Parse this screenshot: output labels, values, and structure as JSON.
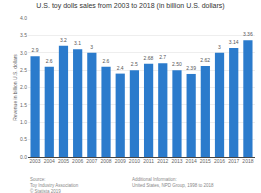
{
  "chart_data": {
    "type": "bar",
    "title": "U.S. toy dolls sales from 2003 to 2018 (in billion U.S. dollars)",
    "categories": [
      "2003",
      "2004",
      "2005",
      "2006",
      "2007",
      "2008",
      "2009",
      "2010",
      "2011",
      "2012",
      "2013",
      "2014",
      "2015",
      "2016",
      "2017",
      "2018"
    ],
    "values": [
      2.9,
      2.6,
      3.2,
      3.1,
      3.0,
      2.6,
      2.4,
      2.5,
      2.68,
      2.7,
      2.5,
      2.39,
      2.62,
      3.0,
      3.14,
      3.36
    ],
    "value_labels": [
      "2.9",
      "2.6",
      "3.2",
      "3.1",
      "3",
      "2.6",
      "2.4",
      "2.5",
      "2.68",
      "2.7",
      "2.50",
      "2.39",
      "2.62",
      "3",
      "3.14",
      "3.36"
    ],
    "data_labels": true,
    "color": "#2b7bcc",
    "ylabel": "Revenue in billion U.S. dollars",
    "ylim": [
      0,
      4
    ],
    "yticks": [
      {
        "value": 0,
        "label": "0.0"
      },
      {
        "value": 0.5,
        "label": "0.5"
      },
      {
        "value": 1.0,
        "label": "1.0"
      },
      {
        "value": 1.5,
        "label": "1.5"
      },
      {
        "value": 2.0,
        "label": "2.0"
      },
      {
        "value": 2.5,
        "label": "2.5"
      },
      {
        "value": 3.0,
        "label": "3.0"
      },
      {
        "value": 3.5,
        "label": "3.5"
      },
      {
        "value": 4.0,
        "label": "4.0"
      }
    ],
    "grid": true,
    "annotations": [
      "Source:\nToy Industry Association\n© Statista 2019",
      "Additional Information:\nUnited States, NPD Group, 1998 to 2018"
    ]
  }
}
